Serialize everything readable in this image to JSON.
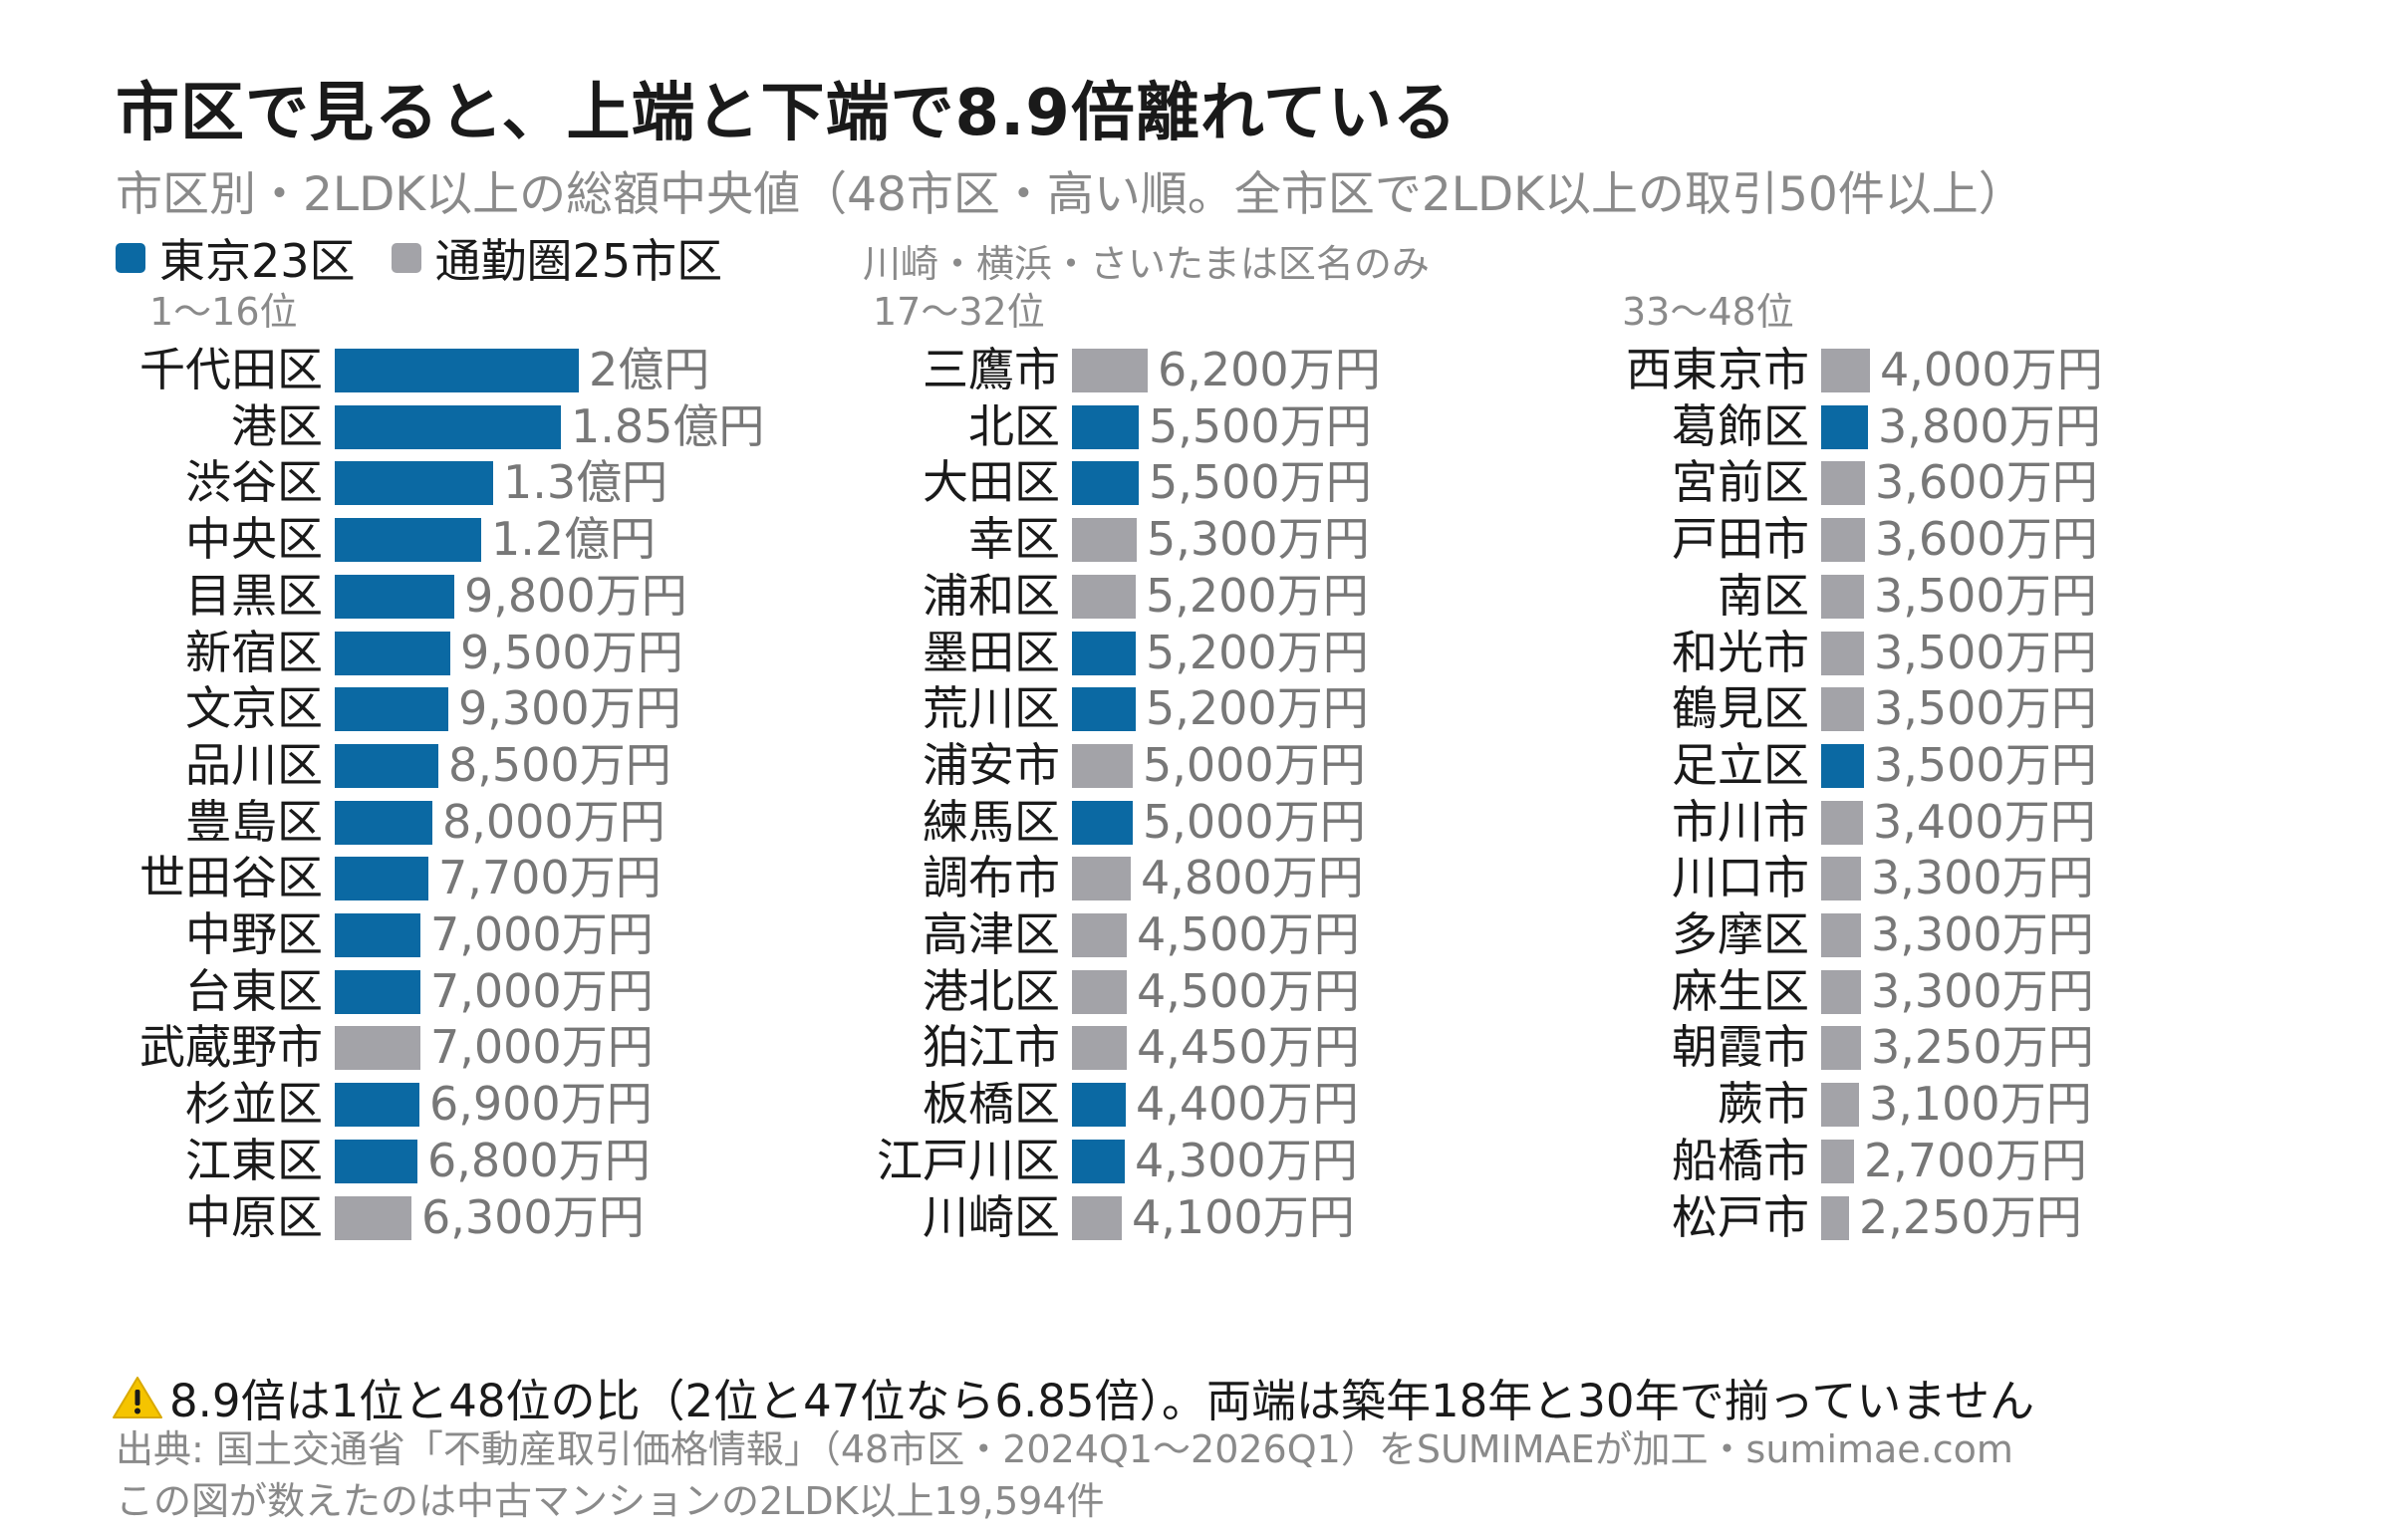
{
  "title": "市区で見ると、上端と下端で8.9倍離れている",
  "subtitle": "市区別・2LDK以上の総額中央値（48市区・高い順。全市区で2LDK以上の取引50件以上）",
  "legend": {
    "tokyo_label": "東京23区",
    "commuter_label": "通勤圏25市区",
    "note": "川崎・横浜・さいたまは区名のみ"
  },
  "colors": {
    "tokyo": "#0b69a3",
    "commuter": "#a3a3a8"
  },
  "note": "8.9倍は1位と48位の比（2位と47位なら6.85倍）。両端は築年18年と30年で揃っていません",
  "source": "出典: 国土交通省「不動産取引価格情報」（48市区・2024Q1〜2026Q1）をSUMIMAEが加工・sumimae.com",
  "count_note": "この図が数えたのは中古マンションの2LDK以上19,594件",
  "chart_data": {
    "type": "bar",
    "unit": "万円",
    "groups": [
      {
        "header": "1〜16位",
        "items": [
          {
            "name": "千代田区",
            "value": 20000,
            "label": "2億円",
            "group": "tokyo"
          },
          {
            "name": "港区",
            "value": 18500,
            "label": "1.85億円",
            "group": "tokyo"
          },
          {
            "name": "渋谷区",
            "value": 13000,
            "label": "1.3億円",
            "group": "tokyo"
          },
          {
            "name": "中央区",
            "value": 12000,
            "label": "1.2億円",
            "group": "tokyo"
          },
          {
            "name": "目黒区",
            "value": 9800,
            "label": "9,800万円",
            "group": "tokyo"
          },
          {
            "name": "新宿区",
            "value": 9500,
            "label": "9,500万円",
            "group": "tokyo"
          },
          {
            "name": "文京区",
            "value": 9300,
            "label": "9,300万円",
            "group": "tokyo"
          },
          {
            "name": "品川区",
            "value": 8500,
            "label": "8,500万円",
            "group": "tokyo"
          },
          {
            "name": "豊島区",
            "value": 8000,
            "label": "8,000万円",
            "group": "tokyo"
          },
          {
            "name": "世田谷区",
            "value": 7700,
            "label": "7,700万円",
            "group": "tokyo"
          },
          {
            "name": "中野区",
            "value": 7000,
            "label": "7,000万円",
            "group": "tokyo"
          },
          {
            "name": "台東区",
            "value": 7000,
            "label": "7,000万円",
            "group": "tokyo"
          },
          {
            "name": "武蔵野市",
            "value": 7000,
            "label": "7,000万円",
            "group": "commuter"
          },
          {
            "name": "杉並区",
            "value": 6900,
            "label": "6,900万円",
            "group": "tokyo"
          },
          {
            "name": "江東区",
            "value": 6800,
            "label": "6,800万円",
            "group": "tokyo"
          },
          {
            "name": "中原区",
            "value": 6300,
            "label": "6,300万円",
            "group": "commuter"
          }
        ]
      },
      {
        "header": "17〜32位",
        "items": [
          {
            "name": "三鷹市",
            "value": 6200,
            "label": "6,200万円",
            "group": "commuter"
          },
          {
            "name": "北区",
            "value": 5500,
            "label": "5,500万円",
            "group": "tokyo"
          },
          {
            "name": "大田区",
            "value": 5500,
            "label": "5,500万円",
            "group": "tokyo"
          },
          {
            "name": "幸区",
            "value": 5300,
            "label": "5,300万円",
            "group": "commuter"
          },
          {
            "name": "浦和区",
            "value": 5200,
            "label": "5,200万円",
            "group": "commuter"
          },
          {
            "name": "墨田区",
            "value": 5200,
            "label": "5,200万円",
            "group": "tokyo"
          },
          {
            "name": "荒川区",
            "value": 5200,
            "label": "5,200万円",
            "group": "tokyo"
          },
          {
            "name": "浦安市",
            "value": 5000,
            "label": "5,000万円",
            "group": "commuter"
          },
          {
            "name": "練馬区",
            "value": 5000,
            "label": "5,000万円",
            "group": "tokyo"
          },
          {
            "name": "調布市",
            "value": 4800,
            "label": "4,800万円",
            "group": "commuter"
          },
          {
            "name": "高津区",
            "value": 4500,
            "label": "4,500万円",
            "group": "commuter"
          },
          {
            "name": "港北区",
            "value": 4500,
            "label": "4,500万円",
            "group": "commuter"
          },
          {
            "name": "狛江市",
            "value": 4450,
            "label": "4,450万円",
            "group": "commuter"
          },
          {
            "name": "板橋区",
            "value": 4400,
            "label": "4,400万円",
            "group": "tokyo"
          },
          {
            "name": "江戸川区",
            "value": 4300,
            "label": "4,300万円",
            "group": "tokyo"
          },
          {
            "name": "川崎区",
            "value": 4100,
            "label": "4,100万円",
            "group": "commuter"
          }
        ]
      },
      {
        "header": "33〜48位",
        "items": [
          {
            "name": "西東京市",
            "value": 4000,
            "label": "4,000万円",
            "group": "commuter"
          },
          {
            "name": "葛飾区",
            "value": 3800,
            "label": "3,800万円",
            "group": "tokyo"
          },
          {
            "name": "宮前区",
            "value": 3600,
            "label": "3,600万円",
            "group": "commuter"
          },
          {
            "name": "戸田市",
            "value": 3600,
            "label": "3,600万円",
            "group": "commuter"
          },
          {
            "name": "南区",
            "value": 3500,
            "label": "3,500万円",
            "group": "commuter"
          },
          {
            "name": "和光市",
            "value": 3500,
            "label": "3,500万円",
            "group": "commuter"
          },
          {
            "name": "鶴見区",
            "value": 3500,
            "label": "3,500万円",
            "group": "commuter"
          },
          {
            "name": "足立区",
            "value": 3500,
            "label": "3,500万円",
            "group": "tokyo"
          },
          {
            "name": "市川市",
            "value": 3400,
            "label": "3,400万円",
            "group": "commuter"
          },
          {
            "name": "川口市",
            "value": 3300,
            "label": "3,300万円",
            "group": "commuter"
          },
          {
            "name": "多摩区",
            "value": 3300,
            "label": "3,300万円",
            "group": "commuter"
          },
          {
            "name": "麻生区",
            "value": 3300,
            "label": "3,300万円",
            "group": "commuter"
          },
          {
            "name": "朝霞市",
            "value": 3250,
            "label": "3,250万円",
            "group": "commuter"
          },
          {
            "name": "蕨市",
            "value": 3100,
            "label": "3,100万円",
            "group": "commuter"
          },
          {
            "name": "船橋市",
            "value": 2700,
            "label": "2,700万円",
            "group": "commuter"
          },
          {
            "name": "松戸市",
            "value": 2250,
            "label": "2,250万円",
            "group": "commuter"
          }
        ]
      }
    ]
  }
}
